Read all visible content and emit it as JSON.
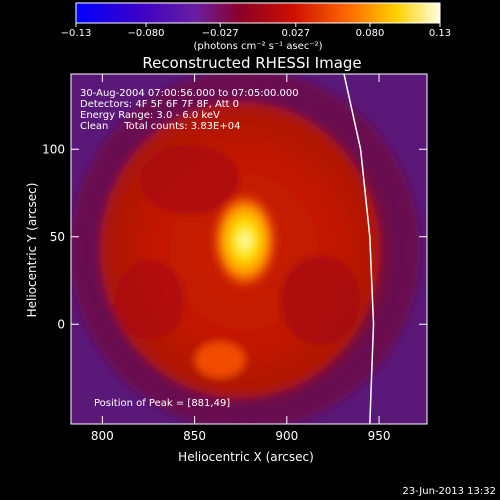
{
  "chart_data": {
    "type": "heatmap",
    "title": "Reconstructed RHESSI Image",
    "xlabel": "Heliocentric X (arcsec)",
    "ylabel": "Heliocentric Y (arcsec)",
    "xlim": [
      783,
      976
    ],
    "ylim": [
      -57,
      143
    ],
    "xticks": [
      800,
      850,
      900,
      950
    ],
    "yticks": [
      0,
      50,
      100
    ],
    "colorbar": {
      "ticks": [
        -0.13,
        -0.08,
        -0.027,
        0.027,
        0.08,
        0.13
      ],
      "tick_labels": [
        "−0.13",
        "−0.080",
        "−0.027",
        "0.027",
        "0.080",
        "0.13"
      ],
      "label": "(photons cm⁻² s⁻¹ asec⁻²)",
      "colormap": [
        "#0000ff",
        "#3a00c8",
        "#6a1ea0",
        "#8a0028",
        "#d01000",
        "#ff6a00",
        "#ffd000",
        "#ffffe0"
      ]
    },
    "annotations": [
      "30-Aug-2004 07:00:56.000 to 07:05:00.000",
      "Detectors: 4F 5F 6F 7F 8F, Att 0",
      "Energy Range: 3.0 - 6.0 keV",
      "Clean     Total counts: 3.83E+04",
      "Position of Peak = [881,49]"
    ],
    "peak": {
      "x": 881,
      "y": 49
    },
    "limb_curve": [
      [
        931,
        143
      ],
      [
        940,
        100
      ],
      [
        945,
        50
      ],
      [
        947,
        0
      ],
      [
        945,
        -57
      ]
    ]
  },
  "footer_date": "23-Jun-2013 13:32"
}
